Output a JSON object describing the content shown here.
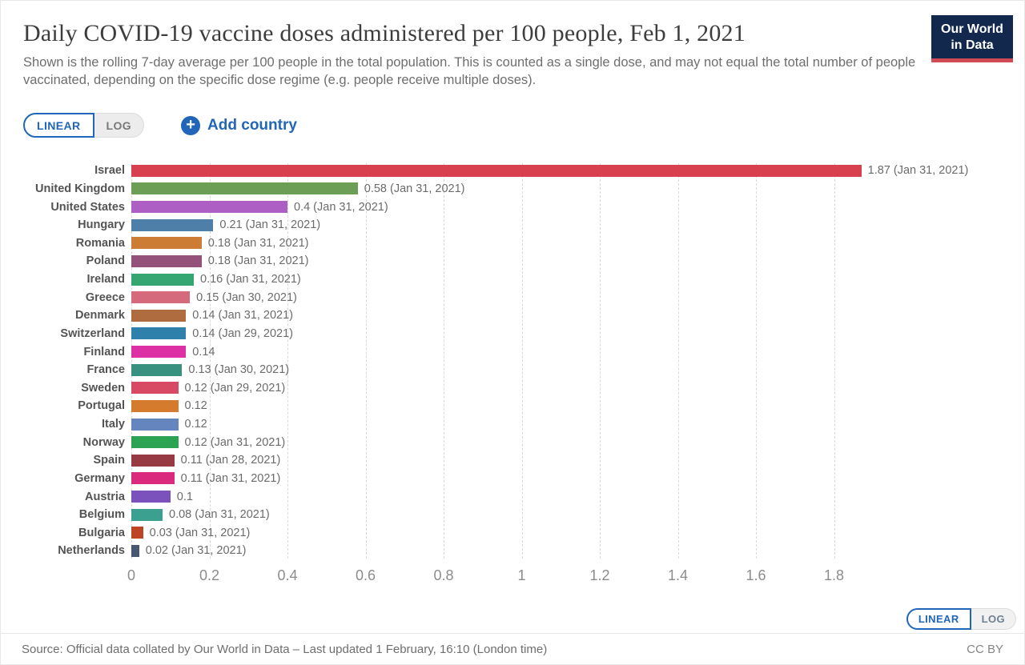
{
  "header": {
    "title": "Daily COVID-19 vaccine doses administered per 100 people, Feb 1, 2021",
    "subtitle": "Shown is the rolling 7-day average per 100 people in the total population. This is counted as a single dose, and may not equal the total number of people vaccinated, depending on the specific dose regime (e.g. people receive multiple doses).",
    "logo": {
      "line1": "Our World",
      "line2": "in Data"
    }
  },
  "controls": {
    "linear_label": "LINEAR",
    "log_label": "LOG",
    "active_scale": "LINEAR",
    "plus_icon": "+",
    "add_country_label": "Add country"
  },
  "chart_data": {
    "type": "bar",
    "orientation": "horizontal",
    "unit": "daily doses administered per 100 people (rolling 7-day average)",
    "xlim": [
      0,
      1.9
    ],
    "x_tick_labels": [
      "0",
      "0.2",
      "0.4",
      "0.6",
      "0.8",
      "1",
      "1.2",
      "1.4",
      "1.6",
      "1.8"
    ],
    "grid": true,
    "bars": [
      {
        "country": "Israel",
        "value": 1.87,
        "label": "1.87 (Jan 31, 2021)",
        "color": "#d9404f"
      },
      {
        "country": "United Kingdom",
        "value": 0.58,
        "label": "0.58 (Jan 31, 2021)",
        "color": "#6d9e56"
      },
      {
        "country": "United States",
        "value": 0.4,
        "label": "0.4 (Jan 31, 2021)",
        "color": "#ad5fc4"
      },
      {
        "country": "Hungary",
        "value": 0.21,
        "label": "0.21 (Jan 31, 2021)",
        "color": "#4d7fa9"
      },
      {
        "country": "Romania",
        "value": 0.18,
        "label": "0.18 (Jan 31, 2021)",
        "color": "#cc7c34"
      },
      {
        "country": "Poland",
        "value": 0.18,
        "label": "0.18 (Jan 31, 2021)",
        "color": "#94527b"
      },
      {
        "country": "Ireland",
        "value": 0.16,
        "label": "0.16 (Jan 31, 2021)",
        "color": "#35a672"
      },
      {
        "country": "Greece",
        "value": 0.15,
        "label": "0.15 (Jan 30, 2021)",
        "color": "#d66a7d"
      },
      {
        "country": "Denmark",
        "value": 0.14,
        "label": "0.14 (Jan 31, 2021)",
        "color": "#ae6c3f"
      },
      {
        "country": "Switzerland",
        "value": 0.14,
        "label": "0.14 (Jan 29, 2021)",
        "color": "#2f80ab"
      },
      {
        "country": "Finland",
        "value": 0.14,
        "label": "0.14",
        "color": "#de30a5"
      },
      {
        "country": "France",
        "value": 0.13,
        "label": "0.13 (Jan 30, 2021)",
        "color": "#38917e"
      },
      {
        "country": "Sweden",
        "value": 0.12,
        "label": "0.12 (Jan 29, 2021)",
        "color": "#d84a64"
      },
      {
        "country": "Portugal",
        "value": 0.12,
        "label": "0.12",
        "color": "#d47b2e"
      },
      {
        "country": "Italy",
        "value": 0.12,
        "label": "0.12",
        "color": "#6485bd"
      },
      {
        "country": "Norway",
        "value": 0.12,
        "label": "0.12 (Jan 31, 2021)",
        "color": "#2ba353"
      },
      {
        "country": "Spain",
        "value": 0.11,
        "label": "0.11 (Jan 28, 2021)",
        "color": "#983a43"
      },
      {
        "country": "Germany",
        "value": 0.11,
        "label": "0.11 (Jan 31, 2021)",
        "color": "#da2a7d"
      },
      {
        "country": "Austria",
        "value": 0.1,
        "label": "0.1",
        "color": "#7b52bb"
      },
      {
        "country": "Belgium",
        "value": 0.08,
        "label": "0.08 (Jan 31, 2021)",
        "color": "#3ba08f"
      },
      {
        "country": "Bulgaria",
        "value": 0.03,
        "label": "0.03 (Jan 31, 2021)",
        "color": "#bd4424"
      },
      {
        "country": "Netherlands",
        "value": 0.02,
        "label": "0.02 (Jan 31, 2021)",
        "color": "#47576f"
      }
    ]
  },
  "bottom_controls": {
    "linear_label": "LINEAR",
    "log_label": "LOG",
    "active_scale": "LINEAR"
  },
  "footer": {
    "source": "Source: Official data collated by Our World in Data – Last updated 1 February, 16:10 (London time)",
    "license": "CC BY"
  },
  "colors": {
    "accent_blue": "#2166b8",
    "logo_navy": "#12294d",
    "logo_red": "#d14b57",
    "grid": "#d9d9d9"
  }
}
